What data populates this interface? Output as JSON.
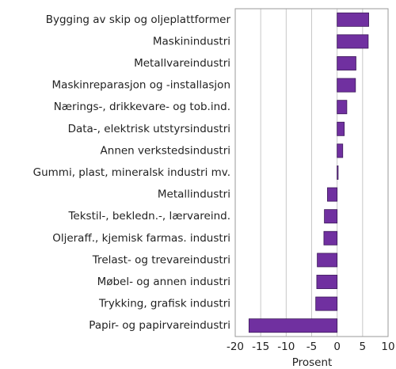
{
  "chart_data": {
    "type": "barh",
    "x_label": "Prosent",
    "categories": [
      "Bygging av skip og oljeplattformer",
      "Maskinindustri",
      "Metallvareindustri",
      "Maskinreparasjon og -installasjon",
      "Nærings-, drikkevare- og tob.ind.",
      "Data-, elektrisk utstyrsindustri",
      "Annen verkstedsindustri",
      "Gummi, plast, mineralsk industri mv.",
      "Metallindustri",
      "Tekstil-, bekledn.-, lærvareind.",
      "Oljeraff., kjemisk farmas. industri",
      "Trelast- og trevareindustri",
      "Møbel- og annen industri",
      "Trykking, grafisk industri",
      "Papir- og papirvareindustri"
    ],
    "values": [
      6.2,
      6.1,
      3.7,
      3.6,
      1.9,
      1.4,
      1.1,
      0.2,
      -1.9,
      -2.5,
      -2.6,
      -3.9,
      -4.0,
      -4.2,
      -17.3
    ],
    "color": "#7030a0",
    "xlim": [
      -20,
      10
    ],
    "xticks": [
      -20,
      -15,
      -10,
      -5,
      0,
      5,
      10
    ],
    "grid": true
  }
}
